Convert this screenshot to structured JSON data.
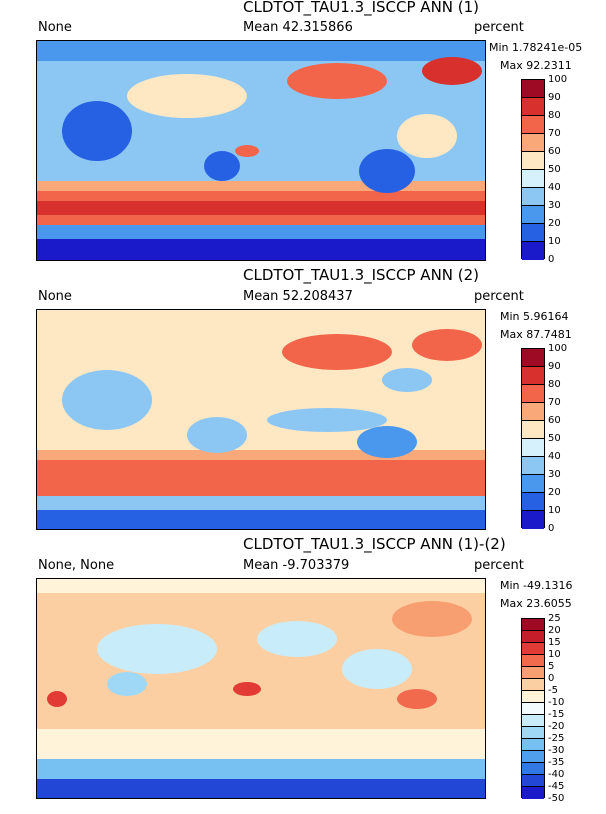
{
  "panels": [
    {
      "title": "CLDTOT_TAU1.3_ISCCP ANN (1)",
      "left_label": "None",
      "mean": "Mean 42.315866",
      "units": "percent",
      "min": "Min 1.78241e-05",
      "max": "Max 92.2311",
      "colorbar": {
        "ticks": [
          "100",
          "90",
          "80",
          "70",
          "60",
          "50",
          "40",
          "30",
          "20",
          "10",
          "0"
        ],
        "colors": [
          "#9e0a24",
          "#d7302d",
          "#f2654a",
          "#f9a87a",
          "#fde8c3",
          "#d6f1fb",
          "#8cc7f4",
          "#4a97ee",
          "#2660e3",
          "#1a1acb"
        ]
      }
    },
    {
      "title": "CLDTOT_TAU1.3_ISCCP ANN (2)",
      "left_label": "None",
      "mean": "Mean 52.208437",
      "units": "percent",
      "min": "Min 5.96164",
      "max": "Max 87.7481",
      "colorbar": {
        "ticks": [
          "100",
          "90",
          "80",
          "70",
          "60",
          "50",
          "40",
          "30",
          "20",
          "10",
          "0"
        ],
        "colors": [
          "#9e0a24",
          "#d7302d",
          "#f2654a",
          "#f9a87a",
          "#fde8c3",
          "#d6f1fb",
          "#8cc7f4",
          "#4a97ee",
          "#2660e3",
          "#1a1acb"
        ]
      }
    },
    {
      "title": "CLDTOT_TAU1.3_ISCCP ANN (1)-(2)",
      "left_label": "None, None",
      "mean": "Mean -9.703379",
      "units": "percent",
      "min": "Min -49.1316",
      "max": "Max 23.6055",
      "colorbar": {
        "ticks": [
          "25",
          "20",
          "15",
          "10",
          "5",
          "0",
          "-5",
          "-10",
          "-15",
          "-20",
          "-25",
          "-30",
          "-35",
          "-40",
          "-45",
          "-50"
        ],
        "colors": [
          "#9e0a24",
          "#c51d2a",
          "#e23a34",
          "#f26a4d",
          "#f89f72",
          "#fccfa2",
          "#fff3d9",
          "#f4fbff",
          "#c9ecfb",
          "#9fd8f6",
          "#76c0f2",
          "#4f9fec",
          "#3278e4",
          "#2247d6",
          "#1a1acb"
        ]
      }
    }
  ]
}
